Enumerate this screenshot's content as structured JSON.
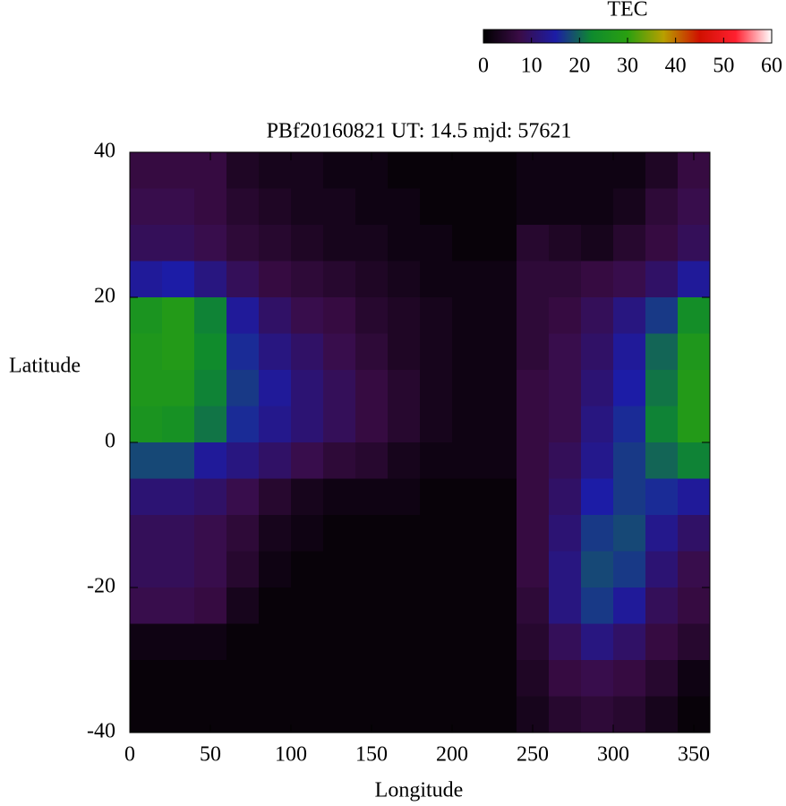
{
  "chart_data": {
    "type": "heatmap",
    "title": "PBf20160821  UT: 14.5  mjd: 57621",
    "xlabel": "Longitude",
    "ylabel": "Latitude",
    "xlim": [
      0,
      360
    ],
    "xticks": [
      0,
      50,
      100,
      150,
      200,
      250,
      300,
      350
    ],
    "ylim": [
      -40,
      40
    ],
    "yticks": [
      -40,
      -20,
      0,
      20,
      40
    ],
    "colorbar_label": "TEC",
    "zlim": [
      0,
      60
    ],
    "zticks": [
      0,
      10,
      20,
      30,
      40,
      50,
      60
    ],
    "colormap": [
      "#000000",
      "#3a0c46",
      "#1c1ca6",
      "#0e8a2e",
      "#2aa010",
      "#b8a000",
      "#d01000",
      "#ff2030",
      "#ffffff"
    ],
    "x": [
      10,
      30,
      50,
      70,
      90,
      110,
      130,
      150,
      170,
      190,
      210,
      230,
      250,
      270,
      290,
      310,
      330,
      350
    ],
    "y": [
      37.5,
      32.5,
      27.5,
      22.5,
      17.5,
      12.5,
      7.5,
      2.5,
      -2.5,
      -7.5,
      -12.5,
      -17.5,
      -22.5,
      -27.5,
      -32.5,
      -37.5
    ],
    "z": [
      [
        7,
        7,
        7,
        4,
        3,
        3,
        2,
        2,
        1,
        1,
        1,
        1,
        2,
        2,
        2,
        2,
        4,
        7
      ],
      [
        8,
        8,
        7,
        5,
        4,
        3,
        3,
        2,
        2,
        1,
        1,
        1,
        2,
        2,
        2,
        3,
        6,
        8
      ],
      [
        9,
        9,
        8,
        6,
        5,
        4,
        3,
        3,
        2,
        2,
        1,
        1,
        5,
        4,
        3,
        5,
        7,
        9
      ],
      [
        14,
        15,
        12,
        9,
        7,
        6,
        5,
        4,
        3,
        2,
        2,
        2,
        6,
        6,
        7,
        8,
        10,
        14
      ],
      [
        26,
        28,
        22,
        14,
        10,
        8,
        7,
        5,
        4,
        3,
        2,
        2,
        6,
        7,
        9,
        12,
        17,
        24
      ],
      [
        27,
        28,
        23,
        16,
        12,
        10,
        8,
        6,
        4,
        3,
        2,
        2,
        6,
        8,
        10,
        14,
        20,
        27
      ],
      [
        27,
        27,
        22,
        17,
        14,
        11,
        9,
        7,
        5,
        3,
        2,
        2,
        7,
        8,
        11,
        15,
        21,
        28
      ],
      [
        26,
        25,
        21,
        16,
        13,
        11,
        9,
        7,
        5,
        3,
        2,
        2,
        7,
        8,
        12,
        16,
        22,
        28
      ],
      [
        18,
        18,
        14,
        12,
        10,
        8,
        6,
        5,
        3,
        2,
        2,
        2,
        7,
        9,
        13,
        17,
        20,
        22
      ],
      [
        11,
        11,
        10,
        8,
        5,
        3,
        2,
        2,
        2,
        1,
        1,
        1,
        7,
        10,
        15,
        17,
        16,
        14
      ],
      [
        9,
        9,
        8,
        6,
        3,
        2,
        1,
        1,
        1,
        1,
        1,
        1,
        7,
        11,
        17,
        18,
        13,
        10
      ],
      [
        9,
        9,
        8,
        5,
        2,
        1,
        1,
        1,
        1,
        1,
        1,
        1,
        7,
        12,
        18,
        17,
        11,
        8
      ],
      [
        8,
        8,
        7,
        3,
        1,
        1,
        1,
        1,
        1,
        1,
        1,
        1,
        6,
        12,
        17,
        14,
        9,
        7
      ],
      [
        2,
        2,
        2,
        1,
        1,
        1,
        1,
        1,
        1,
        1,
        1,
        1,
        5,
        9,
        12,
        10,
        7,
        5
      ],
      [
        1,
        1,
        1,
        1,
        1,
        1,
        1,
        1,
        1,
        1,
        1,
        1,
        4,
        7,
        8,
        7,
        5,
        2
      ],
      [
        1,
        1,
        1,
        1,
        1,
        1,
        1,
        1,
        1,
        1,
        1,
        1,
        3,
        5,
        6,
        5,
        3,
        1
      ]
    ]
  }
}
